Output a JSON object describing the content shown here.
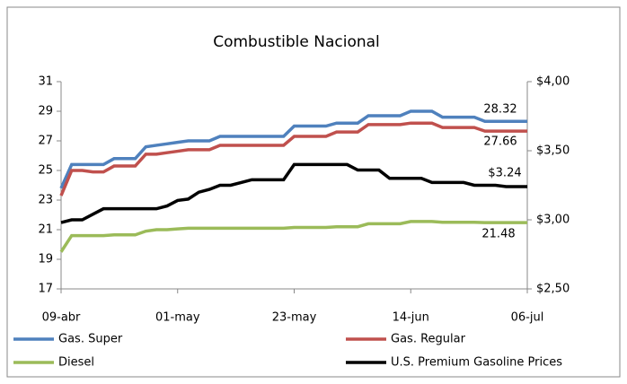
{
  "chart_data": {
    "type": "line",
    "title": "Combustible Nacional",
    "categories": [
      "09-abr",
      null,
      null,
      null,
      null,
      null,
      null,
      null,
      null,
      null,
      null,
      "01-may",
      null,
      null,
      null,
      null,
      null,
      null,
      null,
      null,
      null,
      null,
      "23-may",
      null,
      null,
      null,
      null,
      null,
      null,
      null,
      null,
      null,
      null,
      "14-jun",
      null,
      null,
      null,
      null,
      null,
      null,
      null,
      null,
      null,
      null,
      "06-jul"
    ],
    "ylim": [
      17,
      31
    ],
    "yticks": [
      17,
      19,
      21,
      23,
      25,
      27,
      29,
      31
    ],
    "y2lim": [
      2.5,
      4.0
    ],
    "y2ticks": [
      {
        "value": 2.5,
        "label": "$2,50"
      },
      {
        "value": 3.0,
        "label": "$3,00"
      },
      {
        "value": 3.5,
        "label": "$3,50"
      },
      {
        "value": 4.0,
        "label": "$4,00"
      }
    ],
    "grid": false,
    "legend": "bottom",
    "series": [
      {
        "name": "Gas. Super",
        "color": "#4f81bd",
        "values": [
          23.8,
          25.4,
          25.4,
          25.4,
          25.4,
          25.8,
          25.8,
          25.8,
          26.6,
          26.7,
          26.8,
          26.9,
          27.0,
          27.0,
          27.0,
          27.3,
          27.3,
          27.3,
          27.3,
          27.3,
          27.3,
          27.3,
          28.0,
          28.0,
          28.0,
          28.0,
          28.2,
          28.2,
          28.2,
          28.7,
          28.7,
          28.7,
          28.7,
          29.0,
          29.0,
          29.0,
          28.6,
          28.6,
          28.6,
          28.6,
          28.32,
          28.32,
          28.32,
          28.32,
          28.32
        ]
      },
      {
        "name": "Gas. Regular",
        "color": "#c0504d",
        "values": [
          23.3,
          25.0,
          25.0,
          24.9,
          24.9,
          25.3,
          25.3,
          25.3,
          26.1,
          26.1,
          26.2,
          26.3,
          26.4,
          26.4,
          26.4,
          26.7,
          26.7,
          26.7,
          26.7,
          26.7,
          26.7,
          26.7,
          27.3,
          27.3,
          27.3,
          27.3,
          27.6,
          27.6,
          27.6,
          28.1,
          28.1,
          28.1,
          28.1,
          28.2,
          28.2,
          28.2,
          27.9,
          27.9,
          27.9,
          27.9,
          27.66,
          27.66,
          27.66,
          27.66,
          27.66
        ]
      },
      {
        "name": "Diesel",
        "color": "#9bbb59",
        "values": [
          19.5,
          20.6,
          20.6,
          20.6,
          20.6,
          20.65,
          20.65,
          20.65,
          20.9,
          21.0,
          21.0,
          21.05,
          21.1,
          21.1,
          21.1,
          21.1,
          21.1,
          21.1,
          21.1,
          21.1,
          21.1,
          21.1,
          21.15,
          21.15,
          21.15,
          21.15,
          21.2,
          21.2,
          21.2,
          21.4,
          21.4,
          21.4,
          21.4,
          21.55,
          21.55,
          21.55,
          21.5,
          21.5,
          21.5,
          21.5,
          21.48,
          21.48,
          21.48,
          21.48,
          21.48
        ]
      },
      {
        "name": "U.S. Premium Gasoline Prices",
        "color": "#000000",
        "axis": "y2",
        "values": [
          2.98,
          3.0,
          3.0,
          3.04,
          3.08,
          3.08,
          3.08,
          3.08,
          3.08,
          3.08,
          3.1,
          3.14,
          3.15,
          3.2,
          3.22,
          3.25,
          3.25,
          3.27,
          3.29,
          3.29,
          3.29,
          3.29,
          3.4,
          3.4,
          3.4,
          3.4,
          3.4,
          3.4,
          3.36,
          3.36,
          3.36,
          3.3,
          3.3,
          3.3,
          3.3,
          3.27,
          3.27,
          3.27,
          3.27,
          3.25,
          3.25,
          3.25,
          3.24,
          3.24,
          3.24
        ],
        "value_labels": [
          null,
          null,
          null,
          null,
          null,
          null,
          null,
          null,
          null,
          null,
          null,
          null,
          null,
          null,
          null,
          null,
          null,
          null,
          null,
          null,
          null,
          null,
          null,
          null,
          null,
          null,
          null,
          null,
          null,
          null,
          null,
          null,
          null,
          null,
          null,
          null,
          null,
          null,
          null,
          null,
          null,
          null,
          null,
          null,
          "$3.24"
        ]
      }
    ]
  }
}
